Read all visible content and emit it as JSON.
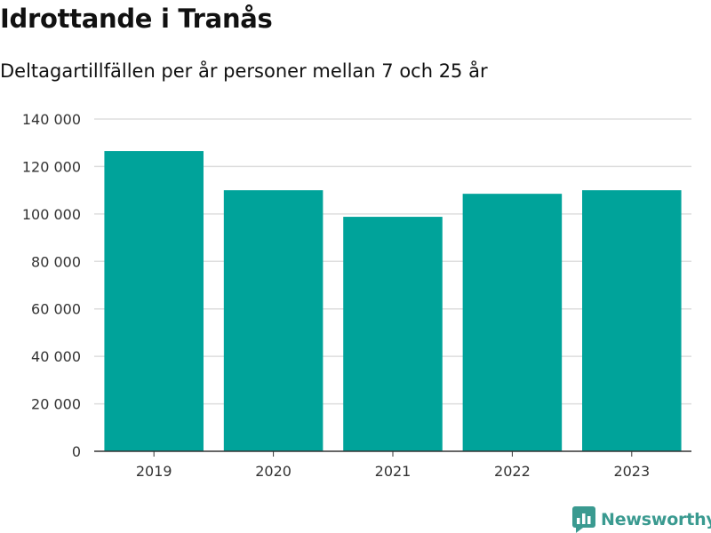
{
  "chart_data": {
    "type": "bar",
    "title": "Idrottande i Tranås",
    "subtitle": "Deltagartillfällen per år personer mellan 7 och 25 år",
    "categories": [
      "2019",
      "2020",
      "2021",
      "2022",
      "2023"
    ],
    "values": [
      126500,
      110000,
      98800,
      108500,
      110000
    ],
    "ylim": [
      0,
      140000
    ],
    "yticks": [
      0,
      20000,
      40000,
      60000,
      80000,
      100000,
      120000,
      140000
    ],
    "ytick_labels": [
      "0",
      "20 000",
      "40 000",
      "60 000",
      "80 000",
      "100 000",
      "120 000",
      "140 000"
    ],
    "grid": true,
    "bar_color": "#00a39a"
  },
  "brand": {
    "name": "Newsworthy",
    "icon": "newsworthy-logo-icon",
    "color": "#3a9a90"
  }
}
